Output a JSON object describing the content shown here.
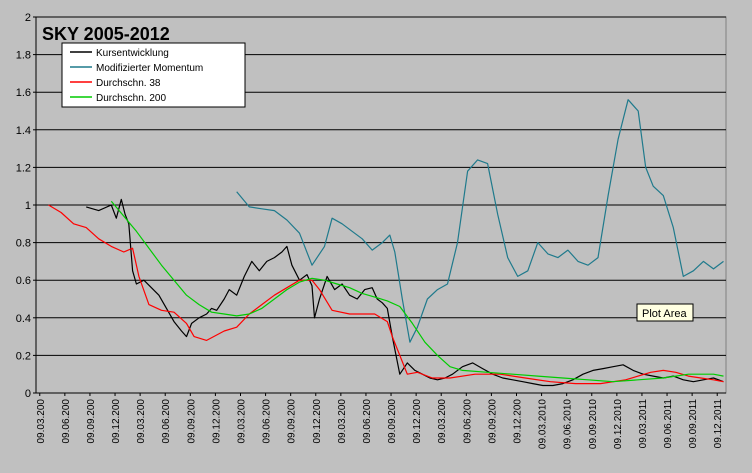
{
  "chart_data": {
    "type": "line",
    "title": "SKY 2005-2012",
    "xlabel": "",
    "ylabel": "",
    "ylim": [
      0,
      2
    ],
    "yticks": [
      "0",
      "0.2",
      "0.4",
      "0.6",
      "0.8",
      "1",
      "1.2",
      "1.4",
      "1.6",
      "1.8",
      "2"
    ],
    "xticks": [
      "09.03.200",
      "09.06.200",
      "09.09.200",
      "09.12.200",
      "09.03.200",
      "09.06.200",
      "09.09.200",
      "09.12.200",
      "09.03.200",
      "09.06.200",
      "09.09.200",
      "09.12.200",
      "09.03.200",
      "09.06.200",
      "09.09.200",
      "09.12.200",
      "09.03.200",
      "09.06.200",
      "09.09.200",
      "09.12.200",
      "09.03.2010",
      "09.06.2010",
      "09.09.2010",
      "09.12.2010",
      "09.03.2011",
      "09.06.2011",
      "09.09.2011",
      "09.12.2011"
    ],
    "xlim": [
      0,
      27.5
    ],
    "grid": true,
    "legend_position": "top-left",
    "tooltip": "Plot Area",
    "series": [
      {
        "name": "Kursentwicklung",
        "color": "#000000",
        "x": [
          2,
          2.5,
          3,
          3.2,
          3.4,
          3.55,
          3.7,
          3.85,
          4,
          4.3,
          4.6,
          4.9,
          5.2,
          5.5,
          5.8,
          6,
          6.2,
          6.5,
          6.8,
          7,
          7.2,
          7.5,
          7.7,
          8,
          8.3,
          8.6,
          8.9,
          9.2,
          9.5,
          9.8,
          10,
          10.2,
          10.5,
          10.8,
          11,
          11.1,
          11.3,
          11.6,
          11.9,
          12.2,
          12.5,
          12.8,
          13.1,
          13.4,
          13.6,
          13.8,
          14,
          14.2,
          14.5,
          14.8,
          15.1,
          15.4,
          15.7,
          16,
          16.3,
          16.6,
          17,
          17.4,
          17.8,
          18.2,
          18.6,
          19,
          19.4,
          19.8,
          20.2,
          20.6,
          21,
          21.4,
          21.8,
          22.2,
          22.6,
          23,
          23.4,
          23.8,
          24.2,
          24.6,
          25,
          25.4,
          25.8,
          26.2,
          26.6,
          27,
          27.4
        ],
        "values": [
          0.99,
          0.97,
          1,
          0.93,
          1.03,
          0.95,
          0.9,
          0.65,
          0.58,
          0.6,
          0.56,
          0.52,
          0.45,
          0.38,
          0.33,
          0.3,
          0.37,
          0.4,
          0.42,
          0.45,
          0.44,
          0.5,
          0.55,
          0.52,
          0.62,
          0.7,
          0.65,
          0.7,
          0.72,
          0.75,
          0.78,
          0.68,
          0.6,
          0.63,
          0.57,
          0.4,
          0.5,
          0.62,
          0.55,
          0.58,
          0.52,
          0.5,
          0.55,
          0.56,
          0.5,
          0.48,
          0.45,
          0.3,
          0.1,
          0.16,
          0.12,
          0.1,
          0.08,
          0.07,
          0.08,
          0.1,
          0.14,
          0.16,
          0.13,
          0.1,
          0.08,
          0.07,
          0.06,
          0.05,
          0.04,
          0.04,
          0.05,
          0.07,
          0.1,
          0.12,
          0.13,
          0.14,
          0.15,
          0.12,
          0.1,
          0.09,
          0.08,
          0.09,
          0.07,
          0.06,
          0.07,
          0.08,
          0.06
        ]
      },
      {
        "name": "Modifizierter Momentum",
        "color": "#1f7a8c",
        "x": [
          8,
          8.5,
          9,
          9.5,
          10,
          10.5,
          11,
          11.5,
          11.8,
          12.2,
          12.6,
          13,
          13.4,
          13.8,
          14.1,
          14.3,
          14.6,
          14.9,
          15.2,
          15.6,
          16,
          16.4,
          16.8,
          17.2,
          17.6,
          18,
          18.4,
          18.8,
          19.2,
          19.6,
          20,
          20.4,
          20.8,
          21.2,
          21.6,
          22,
          22.4,
          22.8,
          23.2,
          23.6,
          24,
          24.3,
          24.6,
          25,
          25.4,
          25.8,
          26.2,
          26.6,
          27,
          27.4
        ],
        "values": [
          1.07,
          0.99,
          0.98,
          0.97,
          0.92,
          0.85,
          0.68,
          0.78,
          0.93,
          0.9,
          0.86,
          0.82,
          0.76,
          0.8,
          0.84,
          0.75,
          0.5,
          0.27,
          0.35,
          0.5,
          0.55,
          0.58,
          0.8,
          1.18,
          1.24,
          1.22,
          0.95,
          0.72,
          0.62,
          0.65,
          0.8,
          0.74,
          0.72,
          0.76,
          0.7,
          0.68,
          0.72,
          1.05,
          1.35,
          1.56,
          1.5,
          1.2,
          1.1,
          1.05,
          0.88,
          0.62,
          0.65,
          0.7,
          0.66,
          0.7
        ]
      },
      {
        "name": "Durchschn. 38",
        "color": "#ff0000",
        "x": [
          0.5,
          1,
          1.5,
          2,
          2.5,
          3,
          3.5,
          3.85,
          4.1,
          4.5,
          5,
          5.5,
          6,
          6.3,
          6.8,
          7.5,
          8,
          8.5,
          9,
          9.5,
          10,
          10.5,
          11,
          11.3,
          11.8,
          12.5,
          13,
          13.5,
          14,
          14.2,
          14.5,
          14.8,
          15.2,
          15.8,
          16.5,
          17.5,
          18.5,
          19.5,
          20.5,
          21.5,
          22.5,
          23.5,
          24.5,
          25,
          25.5,
          26,
          26.5,
          27,
          27.4
        ],
        "values": [
          1,
          0.96,
          0.9,
          0.88,
          0.82,
          0.78,
          0.75,
          0.77,
          0.62,
          0.47,
          0.44,
          0.43,
          0.37,
          0.3,
          0.28,
          0.33,
          0.35,
          0.42,
          0.47,
          0.52,
          0.56,
          0.6,
          0.6,
          0.55,
          0.44,
          0.42,
          0.42,
          0.42,
          0.38,
          0.3,
          0.2,
          0.1,
          0.11,
          0.08,
          0.08,
          0.1,
          0.1,
          0.08,
          0.06,
          0.05,
          0.05,
          0.07,
          0.11,
          0.12,
          0.11,
          0.09,
          0.08,
          0.07,
          0.06
        ]
      },
      {
        "name": "Durchschn. 200",
        "color": "#00cc00",
        "x": [
          3,
          4,
          5,
          5.5,
          6,
          6.5,
          7,
          7.5,
          8,
          8.5,
          9,
          9.5,
          10,
          10.5,
          11,
          11.5,
          12,
          12.5,
          13,
          13.5,
          14,
          14.5,
          15,
          15.5,
          16,
          16.5,
          17,
          18,
          19,
          20,
          21,
          22,
          23,
          24,
          25,
          26,
          27,
          27.4
        ],
        "values": [
          1.02,
          0.86,
          0.68,
          0.6,
          0.52,
          0.47,
          0.43,
          0.42,
          0.41,
          0.42,
          0.45,
          0.5,
          0.55,
          0.59,
          0.61,
          0.6,
          0.58,
          0.56,
          0.53,
          0.51,
          0.49,
          0.46,
          0.37,
          0.27,
          0.2,
          0.14,
          0.12,
          0.11,
          0.1,
          0.09,
          0.08,
          0.07,
          0.06,
          0.07,
          0.08,
          0.1,
          0.1,
          0.09
        ]
      }
    ]
  }
}
